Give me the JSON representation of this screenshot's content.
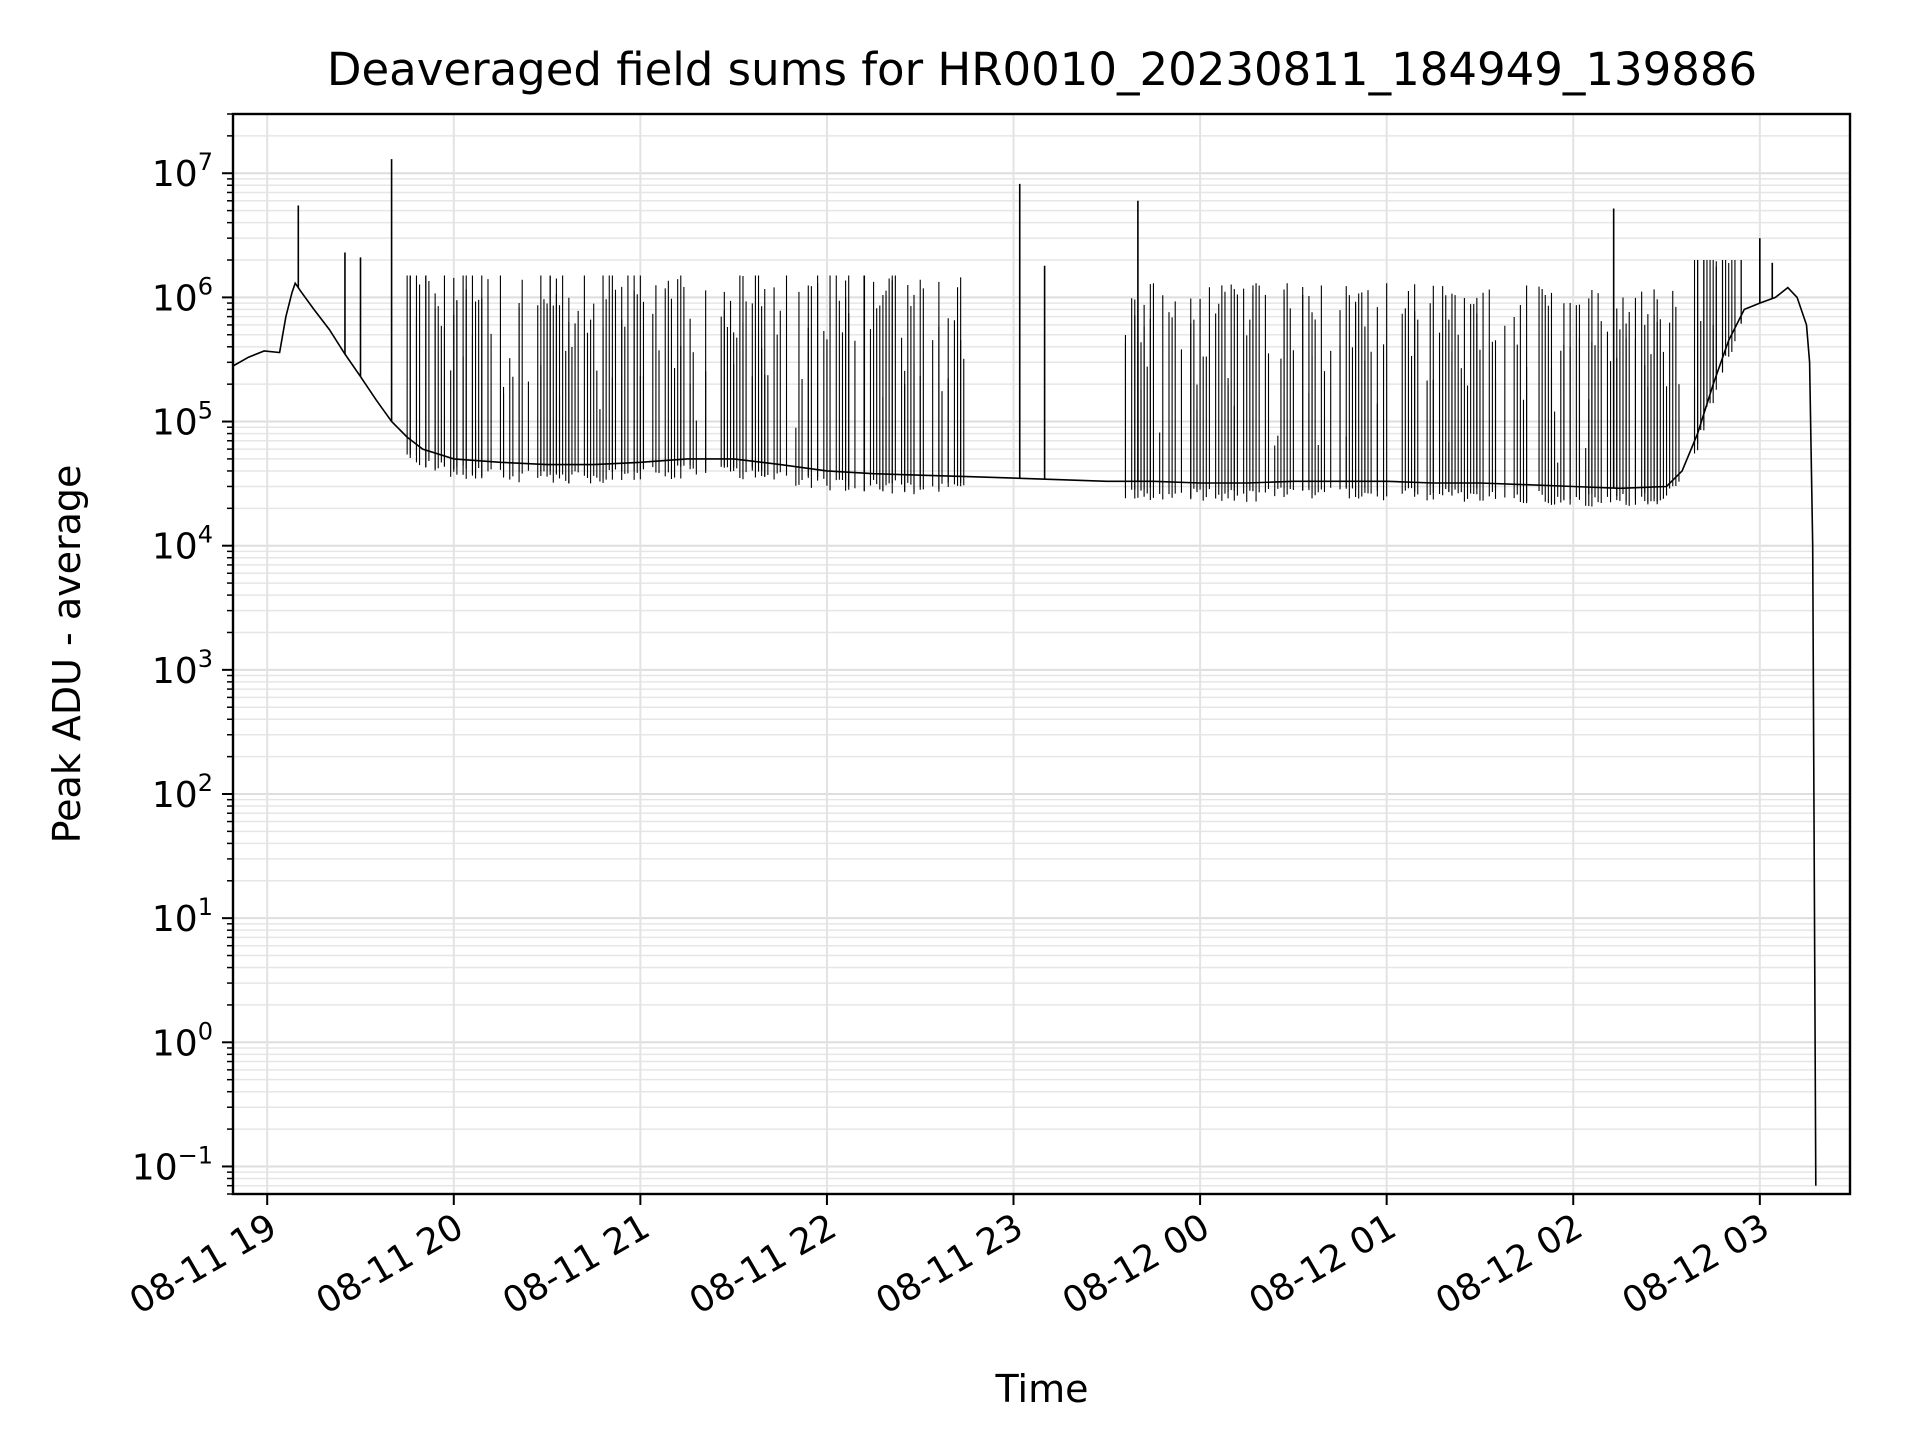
{
  "chart_data": {
    "type": "line",
    "title": "Deaveraged field sums for HR0010_20230811_184949_139886",
    "xlabel": "Time",
    "ylabel": "Peak ADU - average",
    "yscale": "log",
    "grid": true,
    "ylim": [
      0.06,
      30000000
    ],
    "xlim": [
      "2023-08-11 18:49",
      "2023-08-12 03:29"
    ],
    "x_ticks": [
      {
        "value": "2023-08-11 19:00",
        "label": "08-11 19"
      },
      {
        "value": "2023-08-11 20:00",
        "label": "08-11 20"
      },
      {
        "value": "2023-08-11 21:00",
        "label": "08-11 21"
      },
      {
        "value": "2023-08-11 22:00",
        "label": "08-11 22"
      },
      {
        "value": "2023-08-11 23:00",
        "label": "08-11 23"
      },
      {
        "value": "2023-08-12 00:00",
        "label": "08-12 00"
      },
      {
        "value": "2023-08-12 01:00",
        "label": "08-12 01"
      },
      {
        "value": "2023-08-12 02:00",
        "label": "08-12 02"
      },
      {
        "value": "2023-08-12 03:00",
        "label": "08-12 03"
      }
    ],
    "y_ticks": [
      {
        "value": 0.1,
        "base": "10",
        "exp": "−1"
      },
      {
        "value": 1,
        "base": "10",
        "exp": "0"
      },
      {
        "value": 10,
        "base": "10",
        "exp": "1"
      },
      {
        "value": 100,
        "base": "10",
        "exp": "2"
      },
      {
        "value": 1000,
        "base": "10",
        "exp": "3"
      },
      {
        "value": 10000,
        "base": "10",
        "exp": "4"
      },
      {
        "value": 100000,
        "base": "10",
        "exp": "5"
      },
      {
        "value": 1000000,
        "base": "10",
        "exp": "6"
      },
      {
        "value": 10000000,
        "base": "10",
        "exp": "7"
      }
    ],
    "series": [
      {
        "color": "#000000",
        "x": [
          "2023-08-11 18:49",
          "2023-08-11 18:54",
          "2023-08-11 18:59",
          "2023-08-11 19:04",
          "2023-08-11 19:06",
          "2023-08-11 19:08",
          "2023-08-11 19:09",
          "2023-08-11 19:11",
          "2023-08-11 19:15",
          "2023-08-11 19:20",
          "2023-08-11 19:25",
          "2023-08-11 19:30",
          "2023-08-11 19:35",
          "2023-08-11 19:40",
          "2023-08-11 19:45",
          "2023-08-11 19:50",
          "2023-08-11 20:00",
          "2023-08-11 20:15",
          "2023-08-11 20:30",
          "2023-08-11 20:45",
          "2023-08-11 21:00",
          "2023-08-11 21:15",
          "2023-08-11 21:30",
          "2023-08-11 21:45",
          "2023-08-11 22:00",
          "2023-08-11 22:15",
          "2023-08-11 22:30",
          "2023-08-11 22:45",
          "2023-08-11 23:00",
          "2023-08-11 23:15",
          "2023-08-11 23:30",
          "2023-08-11 23:45",
          "2023-08-12 00:00",
          "2023-08-12 00:15",
          "2023-08-12 00:30",
          "2023-08-12 00:45",
          "2023-08-12 01:00",
          "2023-08-12 01:15",
          "2023-08-12 01:30",
          "2023-08-12 01:45",
          "2023-08-12 02:00",
          "2023-08-12 02:15",
          "2023-08-12 02:30",
          "2023-08-12 02:35",
          "2023-08-12 02:40",
          "2023-08-12 02:45",
          "2023-08-12 02:50",
          "2023-08-12 02:55",
          "2023-08-12 03:00",
          "2023-08-12 03:05",
          "2023-08-12 03:09",
          "2023-08-12 03:12",
          "2023-08-12 03:15",
          "2023-08-12 03:16",
          "2023-08-12 03:17",
          "2023-08-12 03:18"
        ],
        "y": [
          280000,
          330000,
          370000,
          360000,
          700000,
          1100000,
          1300000,
          1100000,
          800000,
          550000,
          350000,
          230000,
          150000,
          100000,
          75000,
          60000,
          50000,
          47000,
          45000,
          45000,
          47000,
          50000,
          50000,
          45000,
          40000,
          38000,
          37000,
          36000,
          35000,
          34000,
          33000,
          33000,
          32000,
          32000,
          33000,
          33000,
          33000,
          32000,
          32000,
          31000,
          30000,
          29000,
          30000,
          40000,
          80000,
          200000,
          450000,
          800000,
          900000,
          1000000,
          1200000,
          1000000,
          600000,
          300000,
          10000,
          0.07
        ]
      }
    ],
    "spikes": [
      {
        "x": "2023-08-11 19:10",
        "y": 5500000
      },
      {
        "x": "2023-08-11 19:40",
        "y": 13000000
      },
      {
        "x": "2023-08-11 19:30",
        "y": 2100000
      },
      {
        "x": "2023-08-11 19:25",
        "y": 2300000
      },
      {
        "x": "2023-08-11 23:02",
        "y": 8200000
      },
      {
        "x": "2023-08-11 23:40",
        "y": 6000000
      },
      {
        "x": "2023-08-11 22:12",
        "y": 1500000
      },
      {
        "x": "2023-08-11 23:10",
        "y": 1800000
      },
      {
        "x": "2023-08-12 02:13",
        "y": 5200000
      },
      {
        "x": "2023-08-12 03:00",
        "y": 3000000
      },
      {
        "x": "2023-08-12 03:04",
        "y": 1900000
      }
    ]
  }
}
